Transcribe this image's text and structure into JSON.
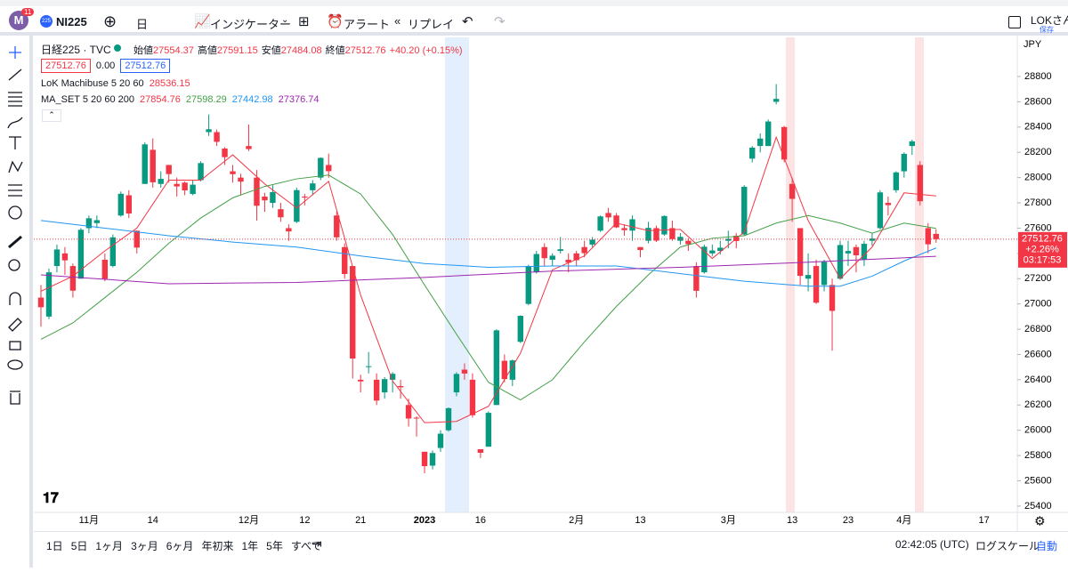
{
  "toolbar": {
    "badge": "11",
    "symbol_icon": "225",
    "symbol": "NI225",
    "interval": "日",
    "indicators": "インジケーター",
    "alert": "アラート",
    "replay": "リプレイ",
    "user": "LOKさん",
    "save": "保存"
  },
  "chart_data": {
    "type": "candlestick",
    "title": "日経225 · TVC",
    "ohlc_labels": [
      "始値",
      "高値",
      "安値",
      "終値"
    ],
    "change": "+40.20 (+0.15%)",
    "zero_box": "0.00",
    "indicator": {
      "name": "LoK Machibuse 5 20 60",
      "value": 28536.15
    },
    "ma_name": "MA_SET 5 20 60 200",
    "currency": "JPY",
    "change_pct": "+2.26%",
    "countdown": "03:17:53",
    "up_color": "#089981",
    "down_color": "#f23645",
    "ylim": [
      25350,
      29110
    ],
    "yticks": [
      25400,
      25600,
      25800,
      26000,
      26200,
      26400,
      26600,
      26800,
      27000,
      27200,
      27400,
      27600,
      27800,
      28000,
      28200,
      28400,
      28600,
      28800
    ],
    "categories": [
      null,
      null,
      null,
      null,
      null,
      null,
      "11月",
      null,
      null,
      null,
      null,
      null,
      null,
      null,
      "14",
      null,
      null,
      null,
      null,
      null,
      null,
      null,
      null,
      null,
      null,
      null,
      "12月",
      null,
      null,
      null,
      null,
      null,
      null,
      "12",
      null,
      null,
      null,
      null,
      null,
      null,
      "21",
      null,
      null,
      null,
      null,
      null,
      null,
      null,
      "2023",
      null,
      null,
      null,
      null,
      null,
      null,
      "16",
      null,
      null,
      null,
      null,
      null,
      null,
      null,
      null,
      null,
      null,
      null,
      "2月",
      null,
      null,
      null,
      null,
      null,
      null,
      null,
      "13",
      null,
      null,
      null,
      null,
      null,
      null,
      null,
      null,
      null,
      null,
      "3月",
      null,
      null,
      null,
      null,
      null,
      null,
      null,
      "13",
      null,
      null,
      null,
      null,
      null,
      null,
      "23",
      null,
      null,
      null,
      null,
      null,
      null,
      "4月",
      null,
      null,
      null,
      null,
      null,
      null,
      null,
      null,
      null,
      "17"
    ],
    "ohlc": [
      [
        27050,
        27150,
        26820,
        26974
      ],
      [
        26900,
        27280,
        26880,
        27250
      ],
      [
        27300,
        27470,
        27250,
        27431
      ],
      [
        27400,
        27450,
        27230,
        27345
      ],
      [
        27300,
        27320,
        27050,
        27105
      ],
      [
        27200,
        27600,
        27200,
        27587
      ],
      [
        27600,
        27700,
        27560,
        27678
      ],
      [
        27640,
        27700,
        27600,
        27663
      ],
      [
        27350,
        27400,
        27180,
        27199
      ],
      [
        27300,
        27550,
        27290,
        27527
      ],
      [
        27700,
        27890,
        27690,
        27872
      ],
      [
        27860,
        27900,
        27680,
        27716
      ],
      [
        27580,
        27580,
        27400,
        27446
      ],
      [
        27950,
        28280,
        27950,
        28263
      ],
      [
        28220,
        28310,
        27920,
        27963
      ],
      [
        27950,
        28050,
        27920,
        27990
      ],
      [
        28100,
        28100,
        27960,
        28028
      ],
      [
        27950,
        28000,
        27850,
        27930
      ],
      [
        27960,
        27970,
        27860,
        27899
      ],
      [
        27870,
        27980,
        27860,
        27944
      ],
      [
        27980,
        28130,
        27970,
        28115
      ],
      [
        28360,
        28500,
        28330,
        28383
      ],
      [
        28360,
        28380,
        28250,
        28283
      ],
      [
        28230,
        28240,
        28100,
        28162
      ],
      [
        28050,
        28100,
        27960,
        28027
      ],
      [
        28000,
        28030,
        27860,
        27968
      ],
      [
        28250,
        28420,
        28210,
        28226
      ],
      [
        28000,
        28060,
        27660,
        27777
      ],
      [
        27850,
        27880,
        27730,
        27820
      ],
      [
        27800,
        27940,
        27760,
        27885
      ],
      [
        27750,
        27800,
        27650,
        27686
      ],
      [
        27600,
        27630,
        27500,
        27574
      ],
      [
        27650,
        27920,
        27640,
        27901
      ],
      [
        27850,
        27870,
        27780,
        27842
      ],
      [
        27900,
        27980,
        27860,
        27954
      ],
      [
        28000,
        28160,
        27980,
        28156
      ],
      [
        28100,
        28190,
        28000,
        28051
      ],
      [
        27700,
        27730,
        27500,
        27527
      ],
      [
        27450,
        27480,
        27200,
        27237
      ],
      [
        27300,
        27300,
        26410,
        26568
      ],
      [
        26400,
        26440,
        26300,
        26387
      ],
      [
        26500,
        26620,
        26450,
        26507
      ],
      [
        26400,
        26450,
        26200,
        26235
      ],
      [
        26300,
        26420,
        26250,
        26405
      ],
      [
        26400,
        26460,
        26300,
        26447
      ],
      [
        26350,
        26400,
        26250,
        26340
      ],
      [
        26200,
        26250,
        26030,
        26093
      ],
      [
        26100,
        26110,
        25950,
        26094
      ],
      [
        25830,
        25830,
        25660,
        25716
      ],
      [
        25720,
        25840,
        25690,
        25820
      ],
      [
        25860,
        26000,
        25830,
        25973
      ],
      [
        26000,
        26180,
        25990,
        26175
      ],
      [
        26300,
        26460,
        26270,
        26446
      ],
      [
        26480,
        26530,
        26400,
        26449
      ],
      [
        26400,
        26450,
        26100,
        26119
      ],
      [
        25850,
        25850,
        25780,
        25822
      ],
      [
        25870,
        26150,
        25870,
        26138
      ],
      [
        26200,
        26800,
        26200,
        26791
      ],
      [
        26550,
        26600,
        26380,
        26405
      ],
      [
        26400,
        26560,
        26350,
        26553
      ],
      [
        26700,
        26910,
        26690,
        26906
      ],
      [
        27000,
        27310,
        26990,
        27299
      ],
      [
        27250,
        27420,
        27240,
        27395
      ],
      [
        27450,
        27480,
        27300,
        27362
      ],
      [
        27350,
        27400,
        27300,
        27382
      ],
      [
        27420,
        27530,
        27400,
        27433
      ],
      [
        27350,
        27400,
        27250,
        27327
      ],
      [
        27400,
        27420,
        27300,
        27346
      ],
      [
        27450,
        27500,
        27370,
        27402
      ],
      [
        27470,
        27530,
        27450,
        27509
      ],
      [
        27580,
        27700,
        27570,
        27693
      ],
      [
        27720,
        27760,
        27650,
        27685
      ],
      [
        27700,
        27720,
        27600,
        27606
      ],
      [
        27600,
        27630,
        27540,
        27584
      ],
      [
        27580,
        27700,
        27500,
        27670
      ],
      [
        27450,
        27450,
        27370,
        27427
      ],
      [
        27500,
        27650,
        27480,
        27602
      ],
      [
        27600,
        27620,
        27490,
        27501
      ],
      [
        27550,
        27700,
        27540,
        27696
      ],
      [
        27600,
        27660,
        27500,
        27513
      ],
      [
        27500,
        27560,
        27470,
        27531
      ],
      [
        27500,
        27520,
        27420,
        27473
      ],
      [
        27300,
        27330,
        27050,
        27104
      ],
      [
        27250,
        27470,
        27240,
        27453
      ],
      [
        27400,
        27470,
        27380,
        27423
      ],
      [
        27420,
        27500,
        27390,
        27445
      ],
      [
        27500,
        27580,
        27440,
        27516
      ],
      [
        27540,
        27560,
        27440,
        27498
      ],
      [
        27550,
        27940,
        27540,
        27927
      ],
      [
        28150,
        28250,
        28120,
        28237
      ],
      [
        28250,
        28350,
        28200,
        28309
      ],
      [
        28250,
        28460,
        28250,
        28444
      ],
      [
        28600,
        28740,
        28580,
        28623
      ],
      [
        28400,
        28410,
        28120,
        28143
      ],
      [
        27950,
        28000,
        27650,
        27832
      ],
      [
        27600,
        27600,
        27150,
        27222
      ],
      [
        27200,
        27400,
        27100,
        27229
      ],
      [
        27300,
        27350,
        27000,
        27010
      ],
      [
        27150,
        27350,
        27100,
        27333
      ],
      [
        27150,
        27200,
        26630,
        26945
      ],
      [
        27200,
        27500,
        27190,
        27466
      ],
      [
        27400,
        27500,
        27300,
        27419
      ],
      [
        27450,
        27470,
        27250,
        27385
      ],
      [
        27350,
        27500,
        27300,
        27476
      ],
      [
        27500,
        27560,
        27460,
        27518
      ],
      [
        27600,
        27900,
        27590,
        27883
      ],
      [
        27800,
        27850,
        27700,
        27782
      ],
      [
        27900,
        28050,
        27880,
        28041
      ],
      [
        28050,
        28200,
        28000,
        28188
      ],
      [
        28250,
        28300,
        28180,
        28287
      ],
      [
        28100,
        28130,
        27780,
        27813
      ],
      [
        27600,
        27640,
        27400,
        27472
      ],
      [
        27554.37,
        27591.15,
        27484.08,
        27512.76
      ],
      null,
      null,
      null,
      null,
      null,
      null
    ],
    "series": [
      {
        "color": "#f23645",
        "x": [
          0,
          4,
          8,
          12,
          16,
          20,
          24,
          28,
          32,
          36,
          40,
          44,
          48,
          52,
          56,
          60,
          64,
          68,
          72,
          76,
          80,
          84,
          88,
          92,
          96,
          100,
          104,
          108,
          112
        ],
        "values": [
          27100,
          27220,
          27420,
          27600,
          27980,
          27980,
          28180,
          27950,
          27760,
          27970,
          27070,
          26390,
          26060,
          26070,
          26190,
          26610,
          27270,
          27380,
          27640,
          27580,
          27590,
          27360,
          27570,
          28320,
          27660,
          27200,
          27450,
          27880,
          27854.76
        ]
      },
      {
        "color": "#43a047",
        "x": [
          0,
          4,
          8,
          12,
          16,
          20,
          24,
          28,
          32,
          36,
          40,
          44,
          48,
          52,
          56,
          60,
          64,
          68,
          72,
          76,
          80,
          84,
          88,
          92,
          96,
          100,
          104,
          108,
          112
        ],
        "values": [
          26720,
          26850,
          27050,
          27250,
          27480,
          27680,
          27840,
          27930,
          27990,
          28020,
          27870,
          27550,
          27150,
          26760,
          26380,
          26240,
          26400,
          26700,
          26980,
          27230,
          27450,
          27520,
          27540,
          27640,
          27700,
          27640,
          27560,
          27640,
          27598.29
        ]
      },
      {
        "color": "#2196f3",
        "x": [
          0,
          8,
          16,
          24,
          32,
          40,
          48,
          56,
          64,
          72,
          80,
          88,
          96,
          100,
          104,
          108,
          112
        ],
        "values": [
          27660,
          27600,
          27540,
          27490,
          27450,
          27380,
          27320,
          27290,
          27300,
          27300,
          27240,
          27180,
          27140,
          27140,
          27220,
          27340,
          27442.98
        ]
      },
      {
        "color": "#9c27b0",
        "x": [
          0,
          16,
          32,
          48,
          64,
          80,
          96,
          112
        ],
        "values": [
          27230,
          27160,
          27170,
          27210,
          27260,
          27290,
          27330,
          27376.74
        ]
      }
    ]
  },
  "bottom_bar": {
    "ranges": [
      "1日",
      "5日",
      "1ヶ月",
      "3ヶ月",
      "6ヶ月",
      "年初来",
      "1年",
      "5年",
      "すべて"
    ],
    "time": "02:42:05 (UTC)",
    "log": "ログスケール",
    "auto": "自動"
  }
}
